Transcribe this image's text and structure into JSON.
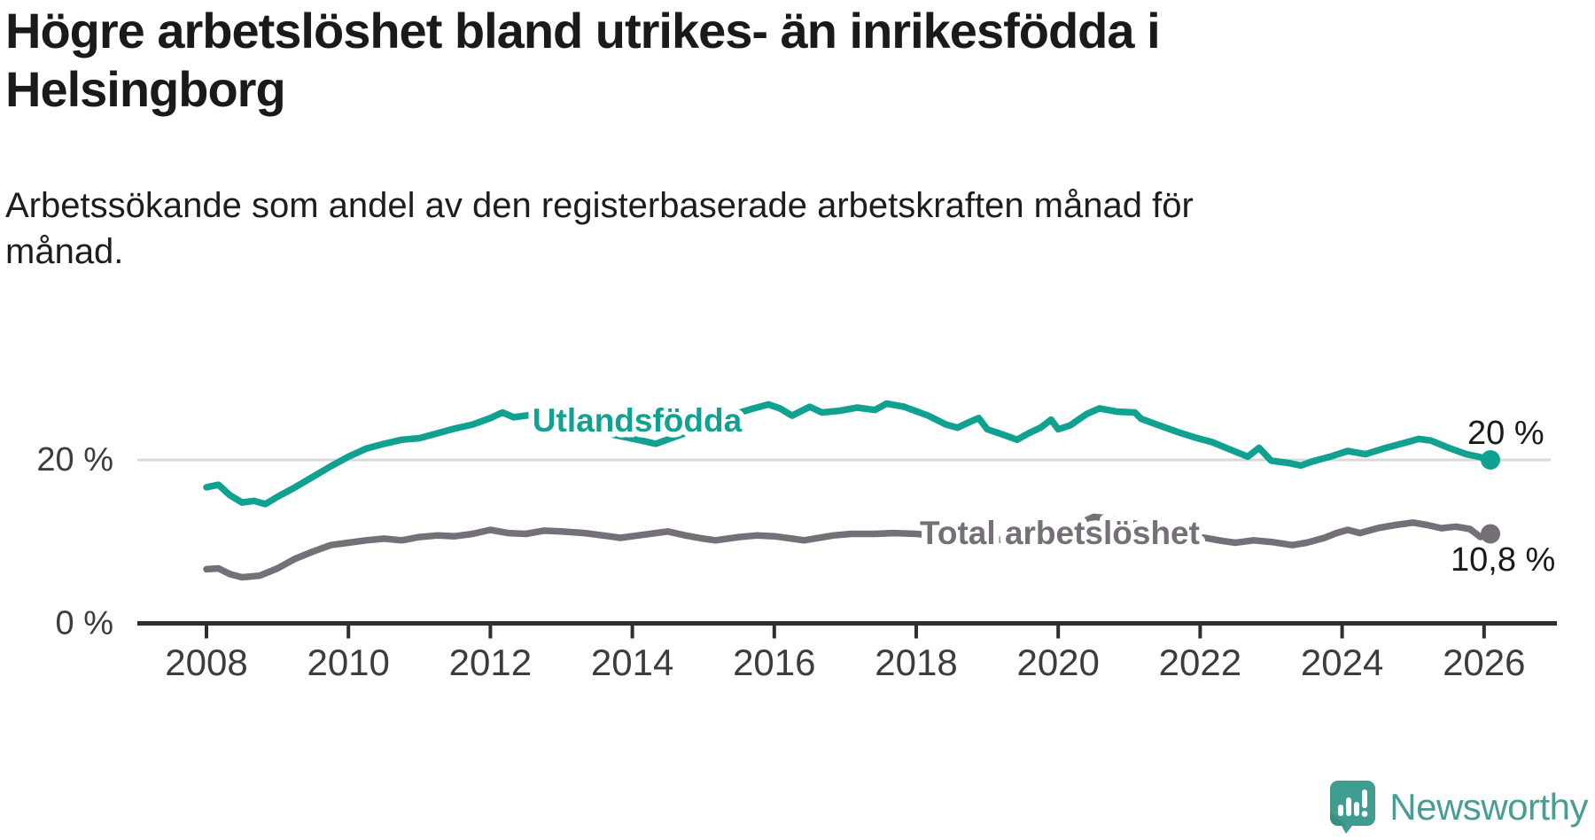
{
  "header": {
    "title": "Högre arbetslöshet bland utrikes- än inrikesfödda i Helsingborg",
    "subtitle": "Arbetssökande som andel av den registerbaserade arbetskraften månad för månad."
  },
  "chart_data": {
    "type": "line",
    "title": "Högre arbetslöshet bland utrikes- än inrikesfödda i Helsingborg",
    "xlabel": "",
    "ylabel": "",
    "x_ticks": [
      2008,
      2010,
      2012,
      2014,
      2016,
      2018,
      2020,
      2022,
      2024,
      2026
    ],
    "y_ticks": [
      {
        "value": 0,
        "label": "0 %"
      },
      {
        "value": 20,
        "label": "20 %"
      }
    ],
    "xlim": [
      2008,
      2026.8
    ],
    "ylim": [
      0,
      30
    ],
    "grid": "single light horizontal gridline at 20 %",
    "legend_position": "inline labels on lines",
    "series": [
      {
        "name": "Utlandsfödda",
        "color": "#10a191",
        "end_label": "20 %",
        "end_value": 20.0,
        "points": [
          [
            2008.0,
            16.6
          ],
          [
            2008.17,
            16.9
          ],
          [
            2008.33,
            15.6
          ],
          [
            2008.5,
            14.7
          ],
          [
            2008.67,
            14.9
          ],
          [
            2008.83,
            14.5
          ],
          [
            2009.0,
            15.4
          ],
          [
            2009.25,
            16.6
          ],
          [
            2009.5,
            17.9
          ],
          [
            2009.75,
            19.2
          ],
          [
            2010.0,
            20.4
          ],
          [
            2010.25,
            21.4
          ],
          [
            2010.5,
            22.0
          ],
          [
            2010.75,
            22.5
          ],
          [
            2011.0,
            22.7
          ],
          [
            2011.25,
            23.3
          ],
          [
            2011.5,
            23.9
          ],
          [
            2011.75,
            24.4
          ],
          [
            2012.0,
            25.2
          ],
          [
            2012.17,
            25.9
          ],
          [
            2012.33,
            25.3
          ],
          [
            2012.58,
            25.6
          ],
          [
            2012.83,
            25.1
          ],
          [
            2013.08,
            24.6
          ],
          [
            2013.42,
            23.8
          ],
          [
            2013.75,
            23.1
          ],
          [
            2014.08,
            22.5
          ],
          [
            2014.33,
            22.0
          ],
          [
            2014.58,
            22.8
          ],
          [
            2014.83,
            23.6
          ],
          [
            2015.08,
            24.6
          ],
          [
            2015.33,
            25.4
          ],
          [
            2015.67,
            26.3
          ],
          [
            2015.92,
            26.9
          ],
          [
            2016.08,
            26.4
          ],
          [
            2016.25,
            25.5
          ],
          [
            2016.5,
            26.6
          ],
          [
            2016.67,
            25.9
          ],
          [
            2016.92,
            26.1
          ],
          [
            2017.17,
            26.5
          ],
          [
            2017.42,
            26.2
          ],
          [
            2017.58,
            27.0
          ],
          [
            2017.83,
            26.6
          ],
          [
            2018.17,
            25.5
          ],
          [
            2018.42,
            24.4
          ],
          [
            2018.58,
            24.0
          ],
          [
            2018.75,
            24.7
          ],
          [
            2018.88,
            25.2
          ],
          [
            2019.0,
            23.8
          ],
          [
            2019.17,
            23.3
          ],
          [
            2019.33,
            22.8
          ],
          [
            2019.42,
            22.5
          ],
          [
            2019.58,
            23.3
          ],
          [
            2019.75,
            24.0
          ],
          [
            2019.9,
            25.0
          ],
          [
            2020.0,
            23.8
          ],
          [
            2020.17,
            24.3
          ],
          [
            2020.4,
            25.7
          ],
          [
            2020.58,
            26.4
          ],
          [
            2020.83,
            26.0
          ],
          [
            2021.08,
            25.9
          ],
          [
            2021.17,
            25.1
          ],
          [
            2021.42,
            24.3
          ],
          [
            2021.67,
            23.5
          ],
          [
            2021.92,
            22.8
          ],
          [
            2022.17,
            22.2
          ],
          [
            2022.42,
            21.3
          ],
          [
            2022.67,
            20.4
          ],
          [
            2022.83,
            21.5
          ],
          [
            2023.0,
            19.9
          ],
          [
            2023.25,
            19.6
          ],
          [
            2023.42,
            19.3
          ],
          [
            2023.58,
            19.8
          ],
          [
            2023.83,
            20.4
          ],
          [
            2024.08,
            21.1
          ],
          [
            2024.33,
            20.7
          ],
          [
            2024.58,
            21.4
          ],
          [
            2024.83,
            22.0
          ],
          [
            2025.08,
            22.6
          ],
          [
            2025.25,
            22.4
          ],
          [
            2025.5,
            21.5
          ],
          [
            2025.75,
            20.7
          ],
          [
            2025.92,
            20.4
          ],
          [
            2026.09,
            20.0
          ]
        ]
      },
      {
        "name": "Total arbetslöshet",
        "color": "#757078",
        "end_label": "10,8 %",
        "end_value": 10.8,
        "points": [
          [
            2008.0,
            6.4
          ],
          [
            2008.17,
            6.5
          ],
          [
            2008.33,
            5.8
          ],
          [
            2008.5,
            5.4
          ],
          [
            2008.75,
            5.6
          ],
          [
            2009.0,
            6.5
          ],
          [
            2009.25,
            7.7
          ],
          [
            2009.5,
            8.6
          ],
          [
            2009.75,
            9.4
          ],
          [
            2010.0,
            9.7
          ],
          [
            2010.25,
            10.0
          ],
          [
            2010.5,
            10.2
          ],
          [
            2010.75,
            10.0
          ],
          [
            2011.0,
            10.4
          ],
          [
            2011.25,
            10.6
          ],
          [
            2011.5,
            10.5
          ],
          [
            2011.75,
            10.8
          ],
          [
            2012.0,
            11.3
          ],
          [
            2012.25,
            10.9
          ],
          [
            2012.5,
            10.8
          ],
          [
            2012.75,
            11.2
          ],
          [
            2013.0,
            11.1
          ],
          [
            2013.33,
            10.9
          ],
          [
            2013.67,
            10.5
          ],
          [
            2013.83,
            10.3
          ],
          [
            2014.08,
            10.6
          ],
          [
            2014.33,
            10.9
          ],
          [
            2014.5,
            11.1
          ],
          [
            2014.75,
            10.6
          ],
          [
            2015.0,
            10.2
          ],
          [
            2015.17,
            10.0
          ],
          [
            2015.5,
            10.4
          ],
          [
            2015.75,
            10.6
          ],
          [
            2016.0,
            10.5
          ],
          [
            2016.25,
            10.2
          ],
          [
            2016.42,
            10.0
          ],
          [
            2016.83,
            10.6
          ],
          [
            2017.08,
            10.8
          ],
          [
            2017.42,
            10.8
          ],
          [
            2017.67,
            10.9
          ],
          [
            2018.0,
            10.8
          ],
          [
            2018.5,
            10.4
          ],
          [
            2019.0,
            10.1
          ],
          [
            2019.5,
            10.0
          ],
          [
            2019.83,
            10.4
          ],
          [
            2020.17,
            11.6
          ],
          [
            2020.5,
            12.9
          ],
          [
            2020.75,
            12.7
          ],
          [
            2021.0,
            12.2
          ],
          [
            2021.5,
            11.4
          ],
          [
            2022.0,
            10.4
          ],
          [
            2022.33,
            9.9
          ],
          [
            2022.5,
            9.7
          ],
          [
            2022.75,
            10.0
          ],
          [
            2023.0,
            9.8
          ],
          [
            2023.3,
            9.4
          ],
          [
            2023.5,
            9.7
          ],
          [
            2023.75,
            10.3
          ],
          [
            2023.92,
            10.9
          ],
          [
            2024.08,
            11.3
          ],
          [
            2024.25,
            10.9
          ],
          [
            2024.5,
            11.5
          ],
          [
            2024.75,
            11.9
          ],
          [
            2025.0,
            12.2
          ],
          [
            2025.2,
            11.9
          ],
          [
            2025.4,
            11.5
          ],
          [
            2025.6,
            11.7
          ],
          [
            2025.8,
            11.4
          ],
          [
            2025.95,
            10.4
          ],
          [
            2026.09,
            10.8
          ]
        ]
      }
    ],
    "annotations": {
      "series_end_labels": [
        "20 %",
        "10,8 %"
      ]
    },
    "colors": {
      "gridline": "#d9d9d9",
      "axis": "#2f2f2f",
      "tick_label": "#3c3c3c",
      "end_label": "#1a1a1a"
    }
  },
  "footer": {
    "brand": "Newsworthy",
    "brand_color": "#4a9d94",
    "icon": "newsworthy-speech-bubble-chart-icon",
    "icon_color": "#3f9c90"
  }
}
